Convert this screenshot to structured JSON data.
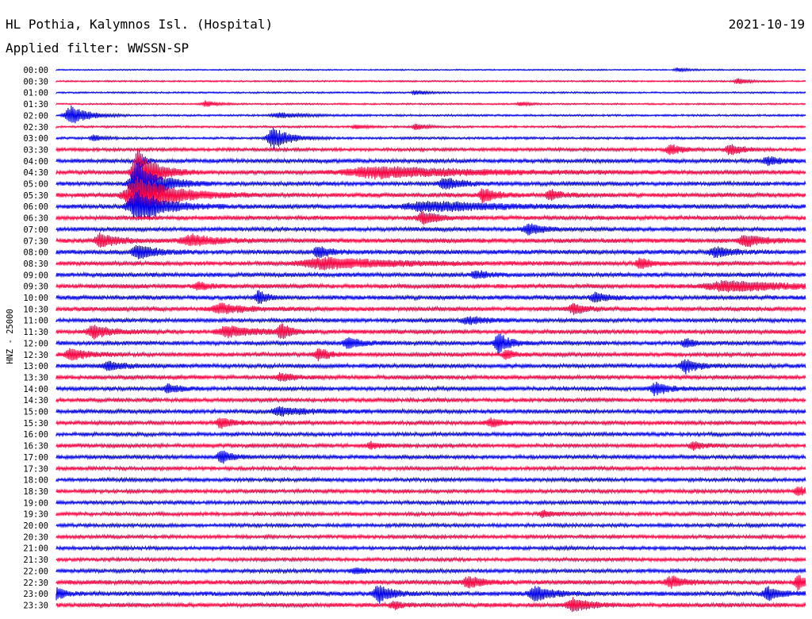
{
  "header": {
    "station": "HL Pothia, Kalymnos Isl. (Hospital)",
    "date": "2021-10-19",
    "filter": "Applied filter: WWSSN-SP"
  },
  "chart_data": {
    "type": "helicorder",
    "ylabel": "HNZ - 25000",
    "colors": {
      "even_row": "#0000ee",
      "odd_row": "#ff0040",
      "text": "#000000"
    },
    "time_span_hours": 24,
    "row_minutes": 30,
    "rows": [
      {
        "label": "00:00",
        "noise": 0.8,
        "events": [
          {
            "pos": 0.83,
            "amp": 2.5,
            "width": 0.012
          }
        ]
      },
      {
        "label": "00:30",
        "noise": 1.0,
        "events": [
          {
            "pos": 0.91,
            "amp": 4,
            "width": 0.012
          }
        ]
      },
      {
        "label": "01:00",
        "noise": 1.0,
        "events": [
          {
            "pos": 0.48,
            "amp": 3,
            "width": 0.012
          }
        ]
      },
      {
        "label": "01:30",
        "noise": 1.0,
        "events": [
          {
            "pos": 0.2,
            "amp": 4,
            "width": 0.012
          },
          {
            "pos": 0.62,
            "amp": 3,
            "width": 0.01
          }
        ]
      },
      {
        "label": "02:00",
        "noise": 1.2,
        "events": [
          {
            "pos": 0.02,
            "amp": 12,
            "width": 0.02
          },
          {
            "pos": 0.3,
            "amp": 3,
            "width": 0.03
          }
        ]
      },
      {
        "label": "02:30",
        "noise": 1.3,
        "events": [
          {
            "pos": 0.4,
            "amp": 3,
            "width": 0.01
          },
          {
            "pos": 0.48,
            "amp": 4,
            "width": 0.01
          }
        ]
      },
      {
        "label": "03:00",
        "noise": 1.5,
        "events": [
          {
            "pos": 0.29,
            "amp": 13,
            "width": 0.02
          },
          {
            "pos": 0.05,
            "amp": 4,
            "width": 0.01
          }
        ]
      },
      {
        "label": "03:30",
        "noise": 2.0,
        "events": [
          {
            "pos": 0.82,
            "amp": 6,
            "width": 0.015
          },
          {
            "pos": 0.9,
            "amp": 7,
            "width": 0.015
          }
        ]
      },
      {
        "label": "04:00",
        "noise": 2.5,
        "events": [
          {
            "pos": 0.11,
            "amp": 12,
            "width": 0.006
          },
          {
            "pos": 0.95,
            "amp": 5,
            "width": 0.015
          }
        ]
      },
      {
        "label": "04:30",
        "noise": 2.7,
        "events": [
          {
            "pos": 0.43,
            "amp": 7,
            "width": 0.1
          },
          {
            "pos": 0.11,
            "amp": 30,
            "width": 0.02
          }
        ]
      },
      {
        "label": "05:00",
        "noise": 2.5,
        "events": [
          {
            "pos": 0.11,
            "amp": 30,
            "width": 0.025
          },
          {
            "pos": 0.52,
            "amp": 7,
            "width": 0.02
          }
        ]
      },
      {
        "label": "05:30",
        "noise": 2.7,
        "events": [
          {
            "pos": 0.11,
            "amp": 24,
            "width": 0.04
          },
          {
            "pos": 0.57,
            "amp": 9,
            "width": 0.015
          },
          {
            "pos": 0.66,
            "amp": 6,
            "width": 0.015
          }
        ]
      },
      {
        "label": "06:00",
        "noise": 2.8,
        "events": [
          {
            "pos": 0.11,
            "amp": 20,
            "width": 0.03
          },
          {
            "pos": 0.5,
            "amp": 6,
            "width": 0.08
          }
        ]
      },
      {
        "label": "06:30",
        "noise": 2.6,
        "events": [
          {
            "pos": 0.49,
            "amp": 7,
            "width": 0.02
          }
        ]
      },
      {
        "label": "07:00",
        "noise": 2.6,
        "events": [
          {
            "pos": 0.63,
            "amp": 8,
            "width": 0.015
          }
        ]
      },
      {
        "label": "07:30",
        "noise": 2.8,
        "events": [
          {
            "pos": 0.06,
            "amp": 9,
            "width": 0.02
          },
          {
            "pos": 0.18,
            "amp": 7,
            "width": 0.03
          },
          {
            "pos": 0.92,
            "amp": 8,
            "width": 0.02
          }
        ]
      },
      {
        "label": "08:00",
        "noise": 2.8,
        "events": [
          {
            "pos": 0.11,
            "amp": 9,
            "width": 0.02
          },
          {
            "pos": 0.35,
            "amp": 7,
            "width": 0.015
          },
          {
            "pos": 0.88,
            "amp": 6,
            "width": 0.02
          }
        ]
      },
      {
        "label": "08:30",
        "noise": 2.6,
        "events": [
          {
            "pos": 0.36,
            "amp": 7,
            "width": 0.08
          },
          {
            "pos": 0.78,
            "amp": 6,
            "width": 0.015
          }
        ]
      },
      {
        "label": "09:00",
        "noise": 2.7,
        "events": [
          {
            "pos": 0.56,
            "amp": 5,
            "width": 0.015
          }
        ]
      },
      {
        "label": "09:30",
        "noise": 2.7,
        "events": [
          {
            "pos": 0.9,
            "amp": 6,
            "width": 0.08
          },
          {
            "pos": 0.19,
            "amp": 5,
            "width": 0.015
          }
        ]
      },
      {
        "label": "10:00",
        "noise": 2.7,
        "events": [
          {
            "pos": 0.27,
            "amp": 9,
            "width": 0.01
          },
          {
            "pos": 0.72,
            "amp": 6,
            "width": 0.015
          }
        ]
      },
      {
        "label": "10:30",
        "noise": 2.7,
        "events": [
          {
            "pos": 0.22,
            "amp": 6,
            "width": 0.03
          },
          {
            "pos": 0.69,
            "amp": 6,
            "width": 0.015
          }
        ]
      },
      {
        "label": "11:00",
        "noise": 2.5,
        "events": [
          {
            "pos": 0.55,
            "amp": 5,
            "width": 0.02
          }
        ]
      },
      {
        "label": "11:30",
        "noise": 2.7,
        "events": [
          {
            "pos": 0.05,
            "amp": 8,
            "width": 0.02
          },
          {
            "pos": 0.23,
            "amp": 7,
            "width": 0.03
          },
          {
            "pos": 0.3,
            "amp": 9,
            "width": 0.012
          }
        ]
      },
      {
        "label": "12:00",
        "noise": 2.6,
        "events": [
          {
            "pos": 0.59,
            "amp": 14,
            "width": 0.012
          },
          {
            "pos": 0.39,
            "amp": 7,
            "width": 0.015
          },
          {
            "pos": 0.84,
            "amp": 6,
            "width": 0.01
          }
        ]
      },
      {
        "label": "12:30",
        "noise": 2.6,
        "events": [
          {
            "pos": 0.02,
            "amp": 7,
            "width": 0.02
          },
          {
            "pos": 0.35,
            "amp": 8,
            "width": 0.012
          },
          {
            "pos": 0.6,
            "amp": 6,
            "width": 0.01
          }
        ]
      },
      {
        "label": "13:00",
        "noise": 2.6,
        "events": [
          {
            "pos": 0.84,
            "amp": 9,
            "width": 0.015
          },
          {
            "pos": 0.07,
            "amp": 5,
            "width": 0.02
          }
        ]
      },
      {
        "label": "13:30",
        "noise": 2.5,
        "events": [
          {
            "pos": 0.3,
            "amp": 5,
            "width": 0.015
          }
        ]
      },
      {
        "label": "14:00",
        "noise": 2.5,
        "events": [
          {
            "pos": 0.8,
            "amp": 8,
            "width": 0.015
          },
          {
            "pos": 0.15,
            "amp": 5,
            "width": 0.015
          }
        ]
      },
      {
        "label": "14:30",
        "noise": 2.4,
        "events": []
      },
      {
        "label": "15:00",
        "noise": 2.6,
        "events": [
          {
            "pos": 0.3,
            "amp": 5,
            "width": 0.03
          }
        ]
      },
      {
        "label": "15:30",
        "noise": 2.5,
        "events": [
          {
            "pos": 0.22,
            "amp": 6,
            "width": 0.015
          },
          {
            "pos": 0.58,
            "amp": 5,
            "width": 0.015
          }
        ]
      },
      {
        "label": "16:00",
        "noise": 2.4,
        "events": []
      },
      {
        "label": "16:30",
        "noise": 2.4,
        "events": [
          {
            "pos": 0.42,
            "amp": 5,
            "width": 0.012
          },
          {
            "pos": 0.85,
            "amp": 5,
            "width": 0.012
          }
        ]
      },
      {
        "label": "17:00",
        "noise": 2.4,
        "events": [
          {
            "pos": 0.22,
            "amp": 8,
            "width": 0.012
          }
        ]
      },
      {
        "label": "17:30",
        "noise": 2.3,
        "events": []
      },
      {
        "label": "18:00",
        "noise": 2.3,
        "events": []
      },
      {
        "label": "18:30",
        "noise": 2.3,
        "events": [
          {
            "pos": 0.99,
            "amp": 6,
            "width": 0.012
          }
        ]
      },
      {
        "label": "19:00",
        "noise": 2.3,
        "events": []
      },
      {
        "label": "19:30",
        "noise": 2.3,
        "events": [
          {
            "pos": 0.65,
            "amp": 4,
            "width": 0.012
          }
        ]
      },
      {
        "label": "20:00",
        "noise": 2.2,
        "events": []
      },
      {
        "label": "20:30",
        "noise": 2.2,
        "events": []
      },
      {
        "label": "21:00",
        "noise": 2.2,
        "events": []
      },
      {
        "label": "21:30",
        "noise": 2.2,
        "events": []
      },
      {
        "label": "22:00",
        "noise": 2.4,
        "events": [
          {
            "pos": 0.4,
            "amp": 4,
            "width": 0.015
          }
        ]
      },
      {
        "label": "22:30",
        "noise": 2.8,
        "events": [
          {
            "pos": 0.55,
            "amp": 8,
            "width": 0.015
          },
          {
            "pos": 0.82,
            "amp": 8,
            "width": 0.015
          },
          {
            "pos": 0.99,
            "amp": 9,
            "width": 0.012
          }
        ]
      },
      {
        "label": "23:00",
        "noise": 2.8,
        "events": [
          {
            "pos": 0.0,
            "amp": 10,
            "width": 0.008
          },
          {
            "pos": 0.43,
            "amp": 12,
            "width": 0.015
          },
          {
            "pos": 0.64,
            "amp": 9,
            "width": 0.02
          },
          {
            "pos": 0.95,
            "amp": 8,
            "width": 0.015
          }
        ]
      },
      {
        "label": "23:30",
        "noise": 2.7,
        "events": [
          {
            "pos": 0.69,
            "amp": 8,
            "width": 0.02
          },
          {
            "pos": 0.45,
            "amp": 5,
            "width": 0.012
          }
        ]
      }
    ]
  }
}
